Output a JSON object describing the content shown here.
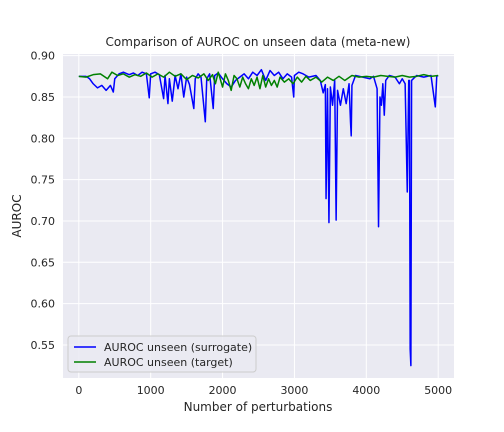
{
  "chart_data": {
    "type": "line",
    "title": "Comparison of AUROC on unseen data (meta-new)",
    "xlabel": "Number of perturbations",
    "ylabel": "AUROC",
    "xlim": [
      -220,
      5220
    ],
    "ylim": [
      0.51,
      0.902
    ],
    "xticks": [
      0,
      1000,
      2000,
      3000,
      4000,
      5000
    ],
    "xtick_labels": [
      "0",
      "1000",
      "2000",
      "3000",
      "4000",
      "5000"
    ],
    "yticks": [
      0.55,
      0.6,
      0.65,
      0.7,
      0.75,
      0.8,
      0.85,
      0.9
    ],
    "ytick_labels": [
      "0.55",
      "0.60",
      "0.65",
      "0.70",
      "0.75",
      "0.80",
      "0.85",
      "0.90"
    ],
    "grid": true,
    "legend_position": "lower-left",
    "background": "#EAEAF2",
    "series": [
      {
        "name": "AUROC unseen (surrogate)",
        "color": "#0000ff",
        "points": [
          [
            0,
            0.875
          ],
          [
            100,
            0.875
          ],
          [
            150,
            0.872
          ],
          [
            200,
            0.866
          ],
          [
            260,
            0.861
          ],
          [
            320,
            0.864
          ],
          [
            380,
            0.858
          ],
          [
            440,
            0.864
          ],
          [
            480,
            0.856
          ],
          [
            500,
            0.872
          ],
          [
            560,
            0.878
          ],
          [
            620,
            0.88
          ],
          [
            700,
            0.877
          ],
          [
            760,
            0.879
          ],
          [
            820,
            0.876
          ],
          [
            880,
            0.88
          ],
          [
            940,
            0.878
          ],
          [
            980,
            0.849
          ],
          [
            1000,
            0.878
          ],
          [
            1060,
            0.88
          ],
          [
            1120,
            0.877
          ],
          [
            1180,
            0.848
          ],
          [
            1200,
            0.876
          ],
          [
            1240,
            0.842
          ],
          [
            1260,
            0.872
          ],
          [
            1300,
            0.845
          ],
          [
            1340,
            0.876
          ],
          [
            1380,
            0.86
          ],
          [
            1420,
            0.878
          ],
          [
            1460,
            0.85
          ],
          [
            1500,
            0.874
          ],
          [
            1540,
            0.865
          ],
          [
            1600,
            0.836
          ],
          [
            1620,
            0.872
          ],
          [
            1660,
            0.878
          ],
          [
            1700,
            0.874
          ],
          [
            1760,
            0.82
          ],
          [
            1780,
            0.872
          ],
          [
            1820,
            0.878
          ],
          [
            1870,
            0.836
          ],
          [
            1890,
            0.876
          ],
          [
            1940,
            0.879
          ],
          [
            2000,
            0.872
          ],
          [
            2060,
            0.866
          ],
          [
            2120,
            0.862
          ],
          [
            2180,
            0.87
          ],
          [
            2240,
            0.874
          ],
          [
            2300,
            0.878
          ],
          [
            2360,
            0.872
          ],
          [
            2420,
            0.88
          ],
          [
            2480,
            0.876
          ],
          [
            2540,
            0.883
          ],
          [
            2600,
            0.87
          ],
          [
            2660,
            0.882
          ],
          [
            2720,
            0.876
          ],
          [
            2780,
            0.88
          ],
          [
            2840,
            0.872
          ],
          [
            2900,
            0.878
          ],
          [
            2960,
            0.874
          ],
          [
            2990,
            0.85
          ],
          [
            3000,
            0.876
          ],
          [
            3060,
            0.88
          ],
          [
            3120,
            0.878
          ],
          [
            3200,
            0.874
          ],
          [
            3300,
            0.876
          ],
          [
            3360,
            0.87
          ],
          [
            3400,
            0.855
          ],
          [
            3430,
            0.865
          ],
          [
            3440,
            0.727
          ],
          [
            3460,
            0.86
          ],
          [
            3480,
            0.698
          ],
          [
            3500,
            0.862
          ],
          [
            3530,
            0.84
          ],
          [
            3560,
            0.87
          ],
          [
            3580,
            0.701
          ],
          [
            3600,
            0.858
          ],
          [
            3640,
            0.84
          ],
          [
            3680,
            0.86
          ],
          [
            3720,
            0.842
          ],
          [
            3760,
            0.866
          ],
          [
            3780,
            0.82
          ],
          [
            3790,
            0.803
          ],
          [
            3800,
            0.864
          ],
          [
            3850,
            0.876
          ],
          [
            3950,
            0.874
          ],
          [
            4050,
            0.872
          ],
          [
            4100,
            0.875
          ],
          [
            4150,
            0.86
          ],
          [
            4170,
            0.693
          ],
          [
            4190,
            0.85
          ],
          [
            4210,
            0.84
          ],
          [
            4230,
            0.866
          ],
          [
            4250,
            0.828
          ],
          [
            4270,
            0.87
          ],
          [
            4320,
            0.876
          ],
          [
            4400,
            0.874
          ],
          [
            4460,
            0.866
          ],
          [
            4500,
            0.872
          ],
          [
            4540,
            0.866
          ],
          [
            4570,
            0.735
          ],
          [
            4590,
            0.87
          ],
          [
            4600,
            0.87
          ],
          [
            4610,
            0.545
          ],
          [
            4620,
            0.525
          ],
          [
            4630,
            0.87
          ],
          [
            4700,
            0.876
          ],
          [
            4800,
            0.874
          ],
          [
            4900,
            0.876
          ],
          [
            4960,
            0.838
          ],
          [
            4980,
            0.875
          ],
          [
            5000,
            0.876
          ]
        ]
      },
      {
        "name": "AUROC unseen (target)",
        "color": "#008000",
        "points": [
          [
            0,
            0.875
          ],
          [
            100,
            0.874
          ],
          [
            200,
            0.877
          ],
          [
            300,
            0.878
          ],
          [
            400,
            0.872
          ],
          [
            460,
            0.88
          ],
          [
            540,
            0.876
          ],
          [
            620,
            0.878
          ],
          [
            700,
            0.874
          ],
          [
            780,
            0.877
          ],
          [
            860,
            0.875
          ],
          [
            940,
            0.879
          ],
          [
            1020,
            0.874
          ],
          [
            1100,
            0.878
          ],
          [
            1180,
            0.874
          ],
          [
            1260,
            0.88
          ],
          [
            1340,
            0.875
          ],
          [
            1420,
            0.878
          ],
          [
            1500,
            0.871
          ],
          [
            1580,
            0.876
          ],
          [
            1660,
            0.873
          ],
          [
            1740,
            0.878
          ],
          [
            1800,
            0.87
          ],
          [
            1860,
            0.877
          ],
          [
            1900,
            0.866
          ],
          [
            1940,
            0.88
          ],
          [
            2000,
            0.862
          ],
          [
            2040,
            0.878
          ],
          [
            2080,
            0.87
          ],
          [
            2120,
            0.858
          ],
          [
            2160,
            0.876
          ],
          [
            2200,
            0.872
          ],
          [
            2240,
            0.862
          ],
          [
            2280,
            0.874
          ],
          [
            2320,
            0.866
          ],
          [
            2360,
            0.86
          ],
          [
            2400,
            0.872
          ],
          [
            2440,
            0.864
          ],
          [
            2480,
            0.874
          ],
          [
            2520,
            0.86
          ],
          [
            2560,
            0.876
          ],
          [
            2600,
            0.862
          ],
          [
            2640,
            0.872
          ],
          [
            2680,
            0.864
          ],
          [
            2720,
            0.87
          ],
          [
            2760,
            0.862
          ],
          [
            2800,
            0.874
          ],
          [
            2860,
            0.868
          ],
          [
            2920,
            0.872
          ],
          [
            2980,
            0.866
          ],
          [
            3040,
            0.874
          ],
          [
            3100,
            0.868
          ],
          [
            3160,
            0.875
          ],
          [
            3220,
            0.87
          ],
          [
            3300,
            0.874
          ],
          [
            3380,
            0.868
          ],
          [
            3460,
            0.874
          ],
          [
            3540,
            0.87
          ],
          [
            3620,
            0.875
          ],
          [
            3700,
            0.87
          ],
          [
            3800,
            0.876
          ],
          [
            3900,
            0.874
          ],
          [
            4000,
            0.875
          ],
          [
            4100,
            0.874
          ],
          [
            4200,
            0.876
          ],
          [
            4300,
            0.875
          ],
          [
            4400,
            0.874
          ],
          [
            4500,
            0.876
          ],
          [
            4600,
            0.874
          ],
          [
            4700,
            0.875
          ],
          [
            4800,
            0.877
          ],
          [
            4900,
            0.875
          ],
          [
            5000,
            0.876
          ]
        ]
      }
    ]
  }
}
